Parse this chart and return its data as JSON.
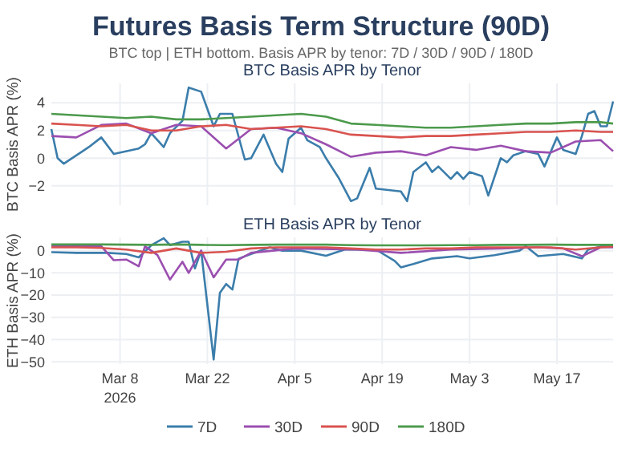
{
  "chart_data": [
    {
      "type": "other",
      "title": "Futures Basis Term Structure (90D)",
      "subtitle": "BTC top | ETH bottom. Basis APR by tenor: 7D / 30D / 90D / 180D"
    },
    {
      "type": "line",
      "title": "BTC Basis APR by Tenor",
      "ylabel": "BTC Basis APR (%)",
      "x": [
        "2026-02-25",
        "2026-03-01",
        "2026-03-05",
        "2026-03-09",
        "2026-03-13",
        "2026-03-17",
        "2026-03-21",
        "2026-03-25",
        "2026-03-29",
        "2026-04-02",
        "2026-04-06",
        "2026-04-10",
        "2026-04-14",
        "2026-04-18",
        "2026-04-22",
        "2026-04-26",
        "2026-04-30",
        "2026-05-04",
        "2026-05-08",
        "2026-05-12",
        "2026-05-16",
        "2026-05-20",
        "2026-05-24",
        "2026-05-26"
      ],
      "xlim": [
        "2026-02-25",
        "2026-05-26"
      ],
      "xticks": [
        {
          "value": "2026-03-08",
          "label": null
        },
        {
          "value": "2026-03-22",
          "label": null
        },
        {
          "value": "2026-04-05",
          "label": null
        },
        {
          "value": "2026-04-19",
          "label": null
        },
        {
          "value": "2026-05-03",
          "label": null
        },
        {
          "value": "2026-05-17",
          "label": null
        }
      ],
      "ylim": [
        -3.4,
        5.4
      ],
      "yticks": [
        {
          "value": -2,
          "label": "−2"
        },
        0,
        2,
        4
      ],
      "grid": true,
      "tick_labels": "y",
      "series": [
        {
          "color": "#3b7dab",
          "x": [
            "2026-02-25",
            "2026-02-26",
            "2026-02-27",
            "2026-03-02",
            "2026-03-03",
            "2026-03-05",
            "2026-03-07",
            "2026-03-11",
            "2026-03-12",
            "2026-03-13",
            "2026-03-15",
            "2026-03-16",
            "2026-03-18",
            "2026-03-19",
            "2026-03-21",
            "2026-03-23",
            "2026-03-24",
            "2026-03-26",
            "2026-03-28",
            "2026-03-29",
            "2026-03-31",
            "2026-04-02",
            "2026-04-03",
            "2026-04-04",
            "2026-04-06",
            "2026-04-07",
            "2026-04-09",
            "2026-04-10",
            "2026-04-12",
            "2026-04-14",
            "2026-04-15",
            "2026-04-17",
            "2026-04-18",
            "2026-04-20",
            "2026-04-22",
            "2026-04-23",
            "2026-04-24",
            "2026-04-26",
            "2026-04-27",
            "2026-04-28",
            "2026-04-30",
            "2026-05-01",
            "2026-05-02",
            "2026-05-03",
            "2026-05-05",
            "2026-05-06",
            "2026-05-08",
            "2026-05-09",
            "2026-05-10",
            "2026-05-12",
            "2026-05-14",
            "2026-05-15",
            "2026-05-17",
            "2026-05-18",
            "2026-05-20",
            "2026-05-21",
            "2026-05-22",
            "2026-05-23",
            "2026-05-24",
            "2026-05-25",
            "2026-05-26"
          ],
          "values": [
            2.1,
            0.0,
            -0.4,
            0.5,
            0.8,
            1.5,
            0.3,
            0.7,
            1.0,
            1.8,
            0.8,
            1.8,
            2.7,
            5.1,
            4.8,
            2.3,
            3.2,
            3.2,
            -0.1,
            0.0,
            1.7,
            -0.4,
            -1.0,
            1.4,
            2.2,
            1.3,
            0.8,
            0.0,
            -1.4,
            -3.1,
            -2.9,
            -0.7,
            -2.2,
            -2.3,
            -2.4,
            -3.1,
            -1.0,
            -0.3,
            -1.0,
            -0.6,
            -1.5,
            -1.0,
            -1.5,
            -1.0,
            -1.3,
            -2.7,
            0.0,
            -0.3,
            0.2,
            0.5,
            0.3,
            -0.6,
            1.5,
            0.6,
            0.3,
            1.6,
            3.2,
            3.4,
            2.3,
            2.3,
            4.1
          ]
        },
        {
          "color": "#9b4fb0",
          "values": [
            1.6,
            1.5,
            2.4,
            2.5,
            1.8,
            2.4,
            2.3,
            0.7,
            2.1,
            2.2,
            1.8,
            1.0,
            0.1,
            0.4,
            0.5,
            0.2,
            0.8,
            0.6,
            0.9,
            0.5,
            0.4,
            1.2,
            1.3,
            0.5
          ]
        },
        {
          "color": "#d9534f",
          "values": [
            2.5,
            2.4,
            2.3,
            2.4,
            2.0,
            2.0,
            2.3,
            2.4,
            2.1,
            2.2,
            2.3,
            2.1,
            1.7,
            1.6,
            1.5,
            1.6,
            1.6,
            1.7,
            1.8,
            1.9,
            1.9,
            2.0,
            1.9,
            1.9
          ]
        },
        {
          "color": "#4c9a4c",
          "values": [
            3.2,
            3.1,
            3.0,
            2.9,
            3.0,
            2.8,
            2.8,
            2.9,
            3.0,
            3.1,
            3.2,
            3.0,
            2.5,
            2.4,
            2.3,
            2.2,
            2.2,
            2.3,
            2.4,
            2.5,
            2.5,
            2.6,
            2.6,
            2.5
          ]
        }
      ]
    },
    {
      "type": "line",
      "title": "ETH Basis APR by Tenor",
      "ylabel": "ETH Basis APR (%)",
      "x": [
        "2026-02-25",
        "2026-03-01",
        "2026-03-05",
        "2026-03-09",
        "2026-03-13",
        "2026-03-17",
        "2026-03-21",
        "2026-03-25",
        "2026-03-29",
        "2026-04-02",
        "2026-04-06",
        "2026-04-10",
        "2026-04-14",
        "2026-04-18",
        "2026-04-22",
        "2026-04-26",
        "2026-04-30",
        "2026-05-04",
        "2026-05-08",
        "2026-05-12",
        "2026-05-16",
        "2026-05-20",
        "2026-05-24",
        "2026-05-26"
      ],
      "xlim": [
        "2026-02-25",
        "2026-05-26"
      ],
      "xticks": [
        {
          "value": "2026-03-08",
          "label": "Mar 8\n2026"
        },
        {
          "value": "2026-03-22",
          "label": "Mar 22"
        },
        {
          "value": "2026-04-05",
          "label": "Apr 5"
        },
        {
          "value": "2026-04-19",
          "label": "Apr 19"
        },
        {
          "value": "2026-05-03",
          "label": "May 3"
        },
        {
          "value": "2026-05-17",
          "label": "May 17"
        }
      ],
      "ylim": [
        -51,
        6
      ],
      "yticks": [
        {
          "value": -50,
          "label": "−50"
        },
        {
          "value": -40,
          "label": "−40"
        },
        {
          "value": -30,
          "label": "−30"
        },
        {
          "value": -20,
          "label": "−20"
        },
        {
          "value": -10,
          "label": "−10"
        },
        0
      ],
      "grid": true,
      "legend": "bottom",
      "series": [
        {
          "name": "7D",
          "color": "#3b7dab",
          "x": [
            "2026-02-25",
            "2026-03-01",
            "2026-03-06",
            "2026-03-09",
            "2026-03-11",
            "2026-03-13",
            "2026-03-15",
            "2026-03-16",
            "2026-03-18",
            "2026-03-19",
            "2026-03-20",
            "2026-03-21",
            "2026-03-23",
            "2026-03-24",
            "2026-03-25",
            "2026-03-26",
            "2026-03-27",
            "2026-03-29",
            "2026-04-01",
            "2026-04-03",
            "2026-04-06",
            "2026-04-10",
            "2026-04-13",
            "2026-04-18",
            "2026-04-21",
            "2026-04-22",
            "2026-04-24",
            "2026-04-27",
            "2026-05-01",
            "2026-05-03",
            "2026-05-07",
            "2026-05-11",
            "2026-05-12",
            "2026-05-14",
            "2026-05-18",
            "2026-05-21",
            "2026-05-22",
            "2026-05-25",
            "2026-05-26"
          ],
          "values": [
            -0.7,
            -1,
            -1,
            -1.5,
            -3,
            2.4,
            5.6,
            2.5,
            4,
            4,
            -8,
            0,
            -49,
            -19,
            -15,
            -17.5,
            -3.6,
            -1.5,
            1.5,
            0,
            0,
            -2.3,
            0.5,
            0.5,
            -4.6,
            -7.5,
            -6,
            -3.5,
            -2.5,
            -3.5,
            -2,
            0,
            2,
            -2.5,
            -1.5,
            -3.5,
            0.5,
            2.5,
            2.5
          ]
        },
        {
          "name": "30D",
          "color": "#9b4fb0",
          "x": [
            "2026-02-25",
            "2026-03-05",
            "2026-03-07",
            "2026-03-09",
            "2026-03-11",
            "2026-03-12",
            "2026-03-14",
            "2026-03-16",
            "2026-03-18",
            "2026-03-19",
            "2026-03-21",
            "2026-03-23",
            "2026-03-25",
            "2026-03-27",
            "2026-03-29",
            "2026-04-05",
            "2026-04-15",
            "2026-04-22",
            "2026-04-30",
            "2026-05-08",
            "2026-05-14",
            "2026-05-18",
            "2026-05-21",
            "2026-05-24",
            "2026-05-26"
          ],
          "values": [
            2,
            2,
            -4.3,
            -4,
            -7,
            2,
            -2,
            -13,
            -5,
            -10,
            0,
            -12,
            -4,
            -4,
            -1,
            1,
            0.5,
            -1,
            0.5,
            1,
            1.5,
            1,
            -2.5,
            1.5,
            1.5
          ]
        },
        {
          "name": "90D",
          "color": "#d9534f",
          "values": [
            1.5,
            1.5,
            1.2,
            0.5,
            -1,
            1,
            -1,
            -0.5,
            1,
            1.5,
            1.5,
            1.5,
            1,
            0.5,
            0.5,
            1,
            1,
            1.5,
            1.5,
            1.5,
            1.5,
            0.5,
            1.5,
            2
          ]
        },
        {
          "name": "180D",
          "color": "#4c9a4c",
          "values": [
            2.8,
            2.8,
            2.8,
            2.7,
            2.6,
            2.8,
            2.6,
            2.5,
            2.6,
            2.7,
            2.7,
            2.7,
            2.5,
            2.4,
            2.4,
            2.4,
            2.5,
            2.5,
            2.6,
            2.6,
            2.7,
            2.6,
            2.6,
            2.6
          ]
        }
      ]
    }
  ]
}
